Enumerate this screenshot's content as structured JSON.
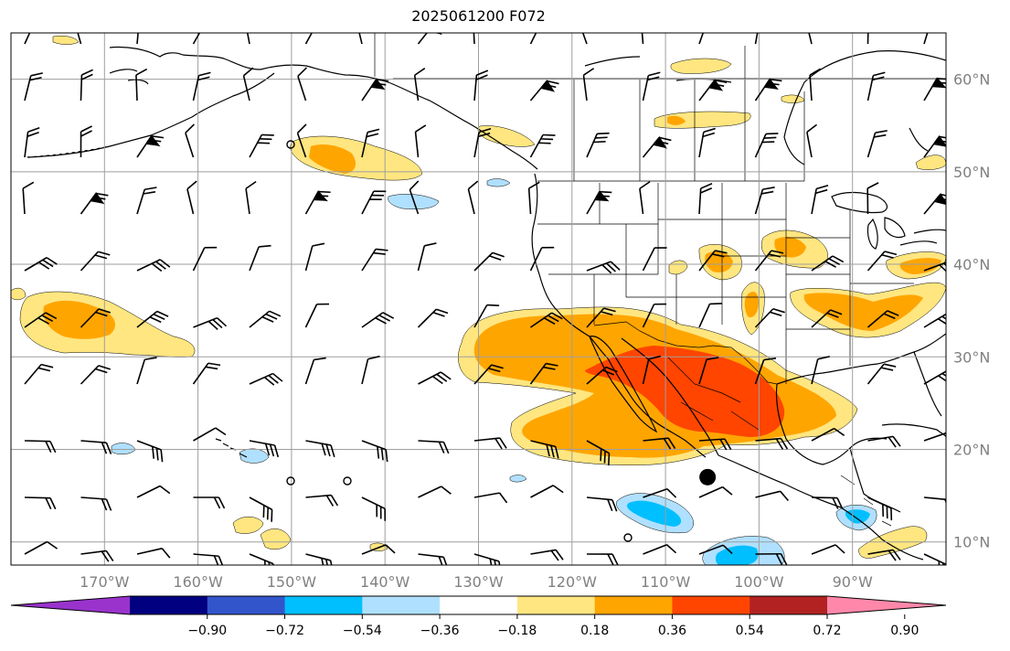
{
  "title": "2025061200 F072",
  "map": {
    "projection": "PlateCarree",
    "lon_range": [
      -180,
      -80
    ],
    "lat_range": [
      7.5,
      65
    ],
    "grid": true,
    "lon_ticks": [
      {
        "value": -170,
        "label": "170°W"
      },
      {
        "value": -160,
        "label": "160°W"
      },
      {
        "value": -150,
        "label": "150°W"
      },
      {
        "value": -140,
        "label": "140°W"
      },
      {
        "value": -130,
        "label": "130°W"
      },
      {
        "value": -120,
        "label": "120°W"
      },
      {
        "value": -110,
        "label": "110°W"
      },
      {
        "value": -100,
        "label": "100°W"
      },
      {
        "value": -90,
        "label": "90°W"
      }
    ],
    "lat_ticks": [
      {
        "value": 60,
        "label": "60°N"
      },
      {
        "value": 50,
        "label": "50°N"
      },
      {
        "value": 40,
        "label": "40°N"
      },
      {
        "value": 30,
        "label": "30°N"
      },
      {
        "value": 20,
        "label": "20°N"
      },
      {
        "value": 10,
        "label": "10°N"
      }
    ],
    "marker": {
      "lon": -105.5,
      "lat": 17
    }
  },
  "colorbar": {
    "extend": "both",
    "colors": [
      "#9933cc",
      "#000080",
      "#3355cc",
      "#00bfff",
      "#b0e0ff",
      "#ffffff",
      "#ffe680",
      "#ffa500",
      "#ff4500",
      "#b22222",
      "#ff88aa"
    ],
    "ticks": [
      "−0.90",
      "−0.72",
      "−0.54",
      "−0.36",
      "−0.18",
      "0.18",
      "0.36",
      "0.54",
      "0.72",
      "0.90"
    ]
  },
  "chart_data": {
    "type": "heatmap",
    "title": "2025061200 F072",
    "xlabel": "",
    "ylabel": "",
    "fields": [
      {
        "level": 0.18,
        "color": "#ffe680",
        "lon": [
          -128,
          -125,
          -121,
          -117,
          -113,
          -110,
          -107,
          -104,
          -101,
          -99,
          -97,
          -95,
          -94,
          -96,
          -98,
          -100,
          -103,
          -105,
          -108,
          -112,
          -115,
          -118,
          -121,
          -124,
          -126,
          -128
        ],
        "lat": [
          28,
          32,
          34,
          35,
          35.5,
          35,
          34,
          33,
          32,
          30,
          29,
          27,
          25,
          23,
          22,
          21,
          20,
          19,
          18.5,
          19,
          20,
          22,
          26,
          27,
          27,
          28
        ]
      },
      {
        "level": 0.36,
        "color": "#ffa500",
        "lon": [
          -127,
          -124,
          -121,
          -117,
          -113,
          -110,
          -107,
          -104,
          -101,
          -99,
          -97,
          -96,
          -97,
          -99,
          -102,
          -105,
          -108,
          -112,
          -115,
          -118,
          -120,
          -124,
          -127
        ],
        "lat": [
          29,
          32,
          33.5,
          34.5,
          35,
          34.5,
          33.5,
          32,
          31,
          29.5,
          27.5,
          25.5,
          23.5,
          22.5,
          21,
          20,
          19.5,
          20,
          21,
          22,
          27,
          27.5,
          29
        ]
      },
      {
        "level": 0.54,
        "color": "#ff4500",
        "lon": [
          -118,
          -115,
          -112,
          -109,
          -106,
          -103,
          -101,
          -100,
          -100,
          -102,
          -104,
          -106,
          -109,
          -112,
          -115,
          -118
        ],
        "lat": [
          29,
          30.5,
          32,
          32.5,
          31.5,
          30,
          28.5,
          26,
          24,
          22.5,
          22,
          22,
          23,
          25,
          27.5,
          29
        ]
      },
      {
        "level": 0.36,
        "color": "#ffa500",
        "lon": [
          -177,
          -173,
          -169,
          -166,
          -166,
          -169,
          -173,
          -176,
          -177
        ],
        "lat": [
          35,
          36.5,
          36,
          34,
          32,
          31,
          31.5,
          33,
          35
        ]
      },
      {
        "level": -0.36,
        "color": "#00bfff",
        "lon": [
          -114,
          -112,
          -110,
          -108,
          -109,
          -111,
          -113,
          -114
        ],
        "lat": [
          13.5,
          13.5,
          12.5,
          11,
          10.5,
          11,
          12,
          13.5
        ]
      },
      {
        "level": -0.36,
        "color": "#00bfff",
        "lon": [
          -104,
          -102,
          -100,
          -100,
          -103,
          -105,
          -104
        ],
        "lat": [
          8.5,
          9,
          8.5,
          7.5,
          7.5,
          7.8,
          8.5
        ]
      }
    ]
  }
}
